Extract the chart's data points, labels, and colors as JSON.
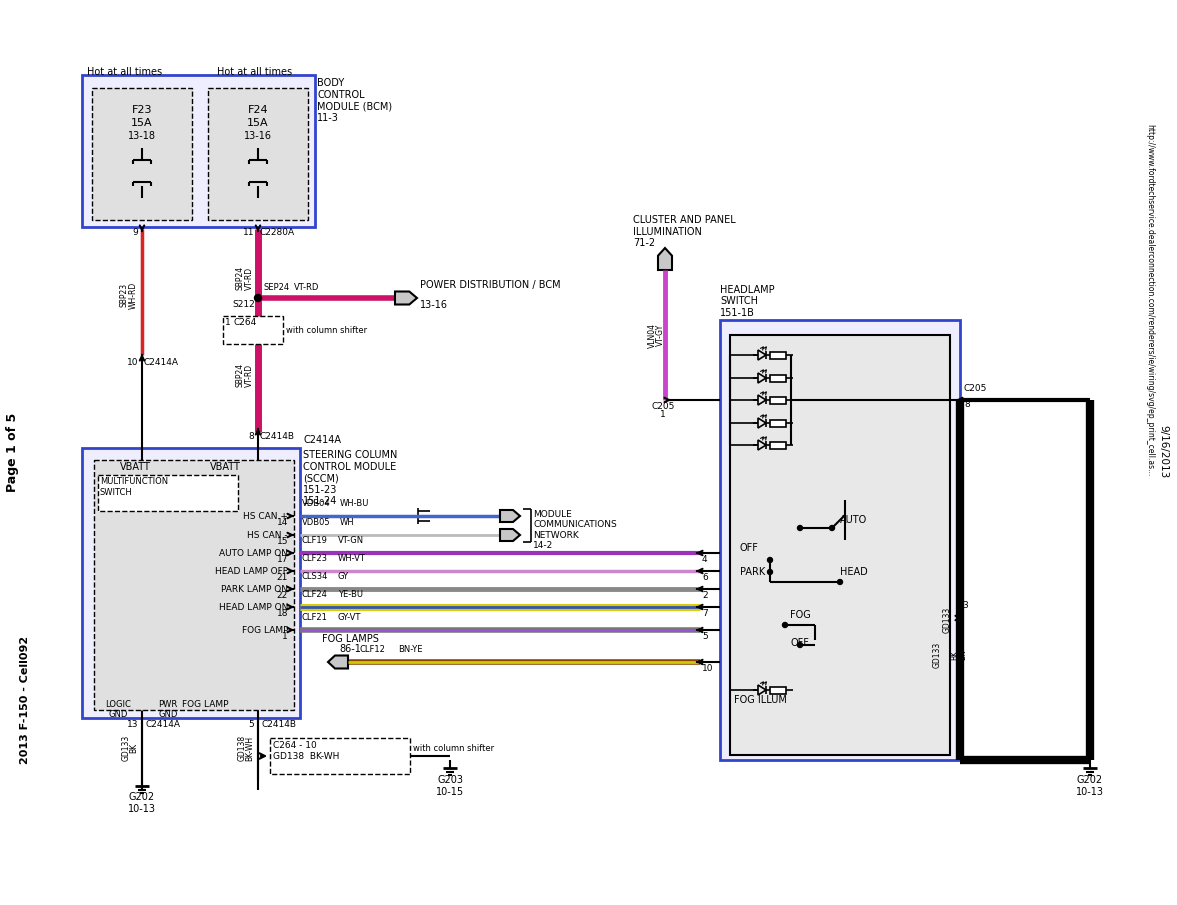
{
  "page_label": "Page 1 of 5",
  "cell_label": "2013 F-150 - Cell092",
  "date_label": "9/16/2013",
  "url_label": "http://www.fordtechservice.dealerconnection.com/renderers/ie/wiring/svg/ep_print_cell.as...",
  "color_pink": "#cc1166",
  "color_violet": "#cc44cc",
  "color_blue_wire": "#4466bb",
  "color_yellow": "#ddcc00",
  "color_gray": "#888888",
  "color_purple": "#9933bb",
  "color_brown": "#884400",
  "color_blue_box": "#3344cc",
  "color_box_bg": "#eeeeff",
  "color_inner_bg": "#e0e0e0",
  "color_sw_bg": "#e8e8e8"
}
